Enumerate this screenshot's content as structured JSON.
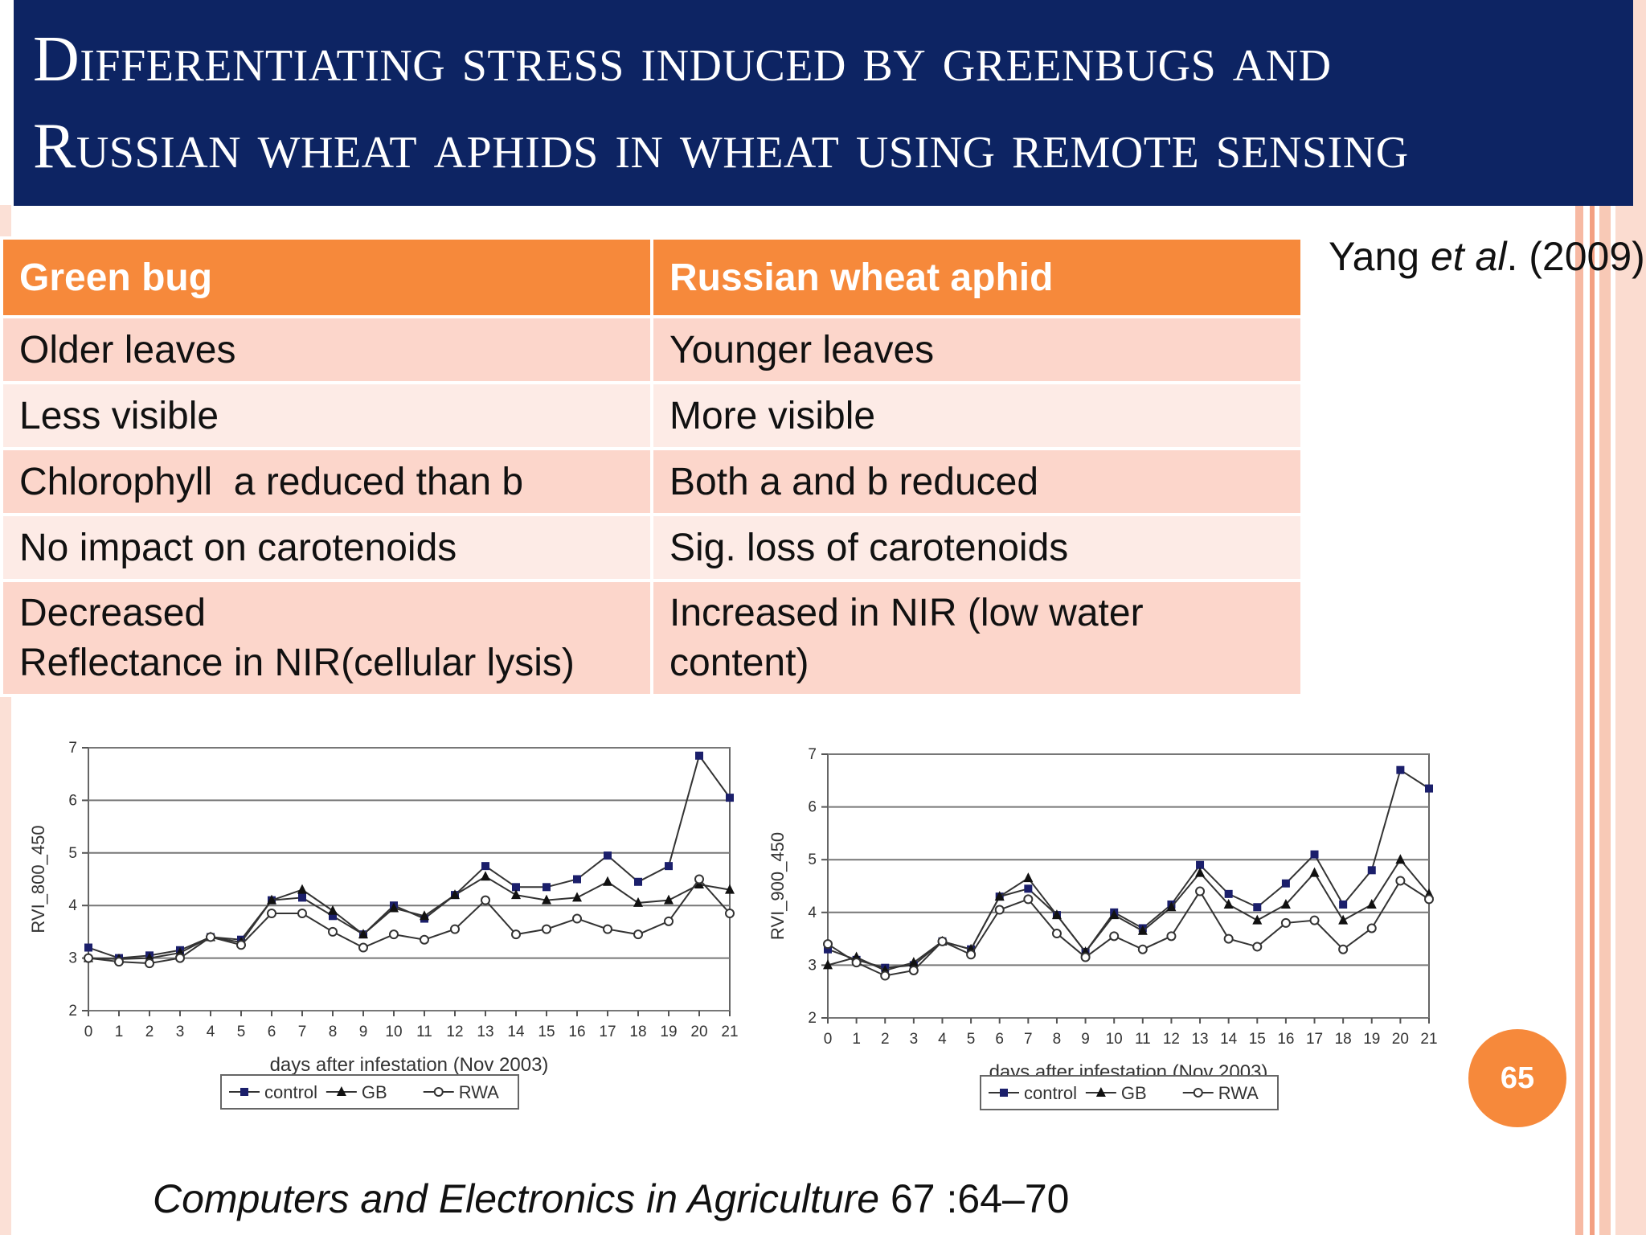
{
  "title": {
    "line1": "Differentiating stress induced by greenbugs and",
    "line2": "Russian wheat aphids in wheat using remote sensing"
  },
  "citation": {
    "author": "Yang ",
    "etal": "et al",
    "year": ". (2009)"
  },
  "table": {
    "headers": [
      "Green bug",
      "Russian wheat aphid"
    ],
    "rows": [
      [
        "Older leaves",
        "Younger leaves"
      ],
      [
        "Less visible",
        "More visible"
      ],
      [
        "Chlorophyll  a reduced than b",
        "Both a and b reduced"
      ],
      [
        "No impact on carotenoids",
        "Sig. loss of carotenoids"
      ],
      [
        "Decreased",
        "Increased in NIR (low water"
      ],
      [
        "Reflectance in NIR(cellular lysis)",
        "content)"
      ]
    ]
  },
  "page_number": "65",
  "footer": {
    "journal": "Computers and Electronics in Agriculture",
    "ref": " 67 :64–70"
  },
  "colors": {
    "header_bg": "#0d2463",
    "accent": "#f6893b",
    "row_odd": "#fcd6cb",
    "row_even": "#fdebe6"
  },
  "chart_data": [
    {
      "type": "line",
      "xlabel": "days after infestation (Nov 2003)",
      "ylabel": "RVI_800_450",
      "x": [
        0,
        1,
        2,
        3,
        4,
        5,
        6,
        7,
        8,
        9,
        10,
        11,
        12,
        13,
        14,
        15,
        16,
        17,
        18,
        19,
        20,
        21
      ],
      "ylim": [
        2,
        7
      ],
      "yticks": [
        2,
        3,
        4,
        5,
        6,
        7
      ],
      "grid": "horizontal",
      "legend": "bottom",
      "series": [
        {
          "name": "control",
          "marker": "square",
          "values": [
            3.2,
            3.0,
            3.05,
            3.15,
            3.4,
            3.35,
            4.1,
            4.15,
            3.8,
            3.45,
            4.0,
            3.75,
            4.2,
            4.75,
            4.35,
            4.35,
            4.5,
            4.95,
            4.45,
            4.75,
            6.85,
            6.05
          ]
        },
        {
          "name": "GB",
          "marker": "triangle",
          "values": [
            3.0,
            2.98,
            3.0,
            3.1,
            3.4,
            3.3,
            4.1,
            4.3,
            3.9,
            3.45,
            3.95,
            3.8,
            4.2,
            4.55,
            4.2,
            4.1,
            4.15,
            4.45,
            4.05,
            4.1,
            4.4,
            4.3
          ]
        },
        {
          "name": "RWA",
          "marker": "circle",
          "values": [
            3.0,
            2.93,
            2.9,
            3.0,
            3.4,
            3.25,
            3.85,
            3.85,
            3.5,
            3.2,
            3.45,
            3.35,
            3.55,
            4.1,
            3.45,
            3.55,
            3.75,
            3.55,
            3.45,
            3.7,
            4.5,
            3.85
          ]
        }
      ]
    },
    {
      "type": "line",
      "xlabel": "days after infestation (Nov 2003)",
      "ylabel": "RVI_900_450",
      "x": [
        0,
        1,
        2,
        3,
        4,
        5,
        6,
        7,
        8,
        9,
        10,
        11,
        12,
        13,
        14,
        15,
        16,
        17,
        18,
        19,
        20,
        21
      ],
      "ylim": [
        2,
        7
      ],
      "yticks": [
        2,
        3,
        4,
        5,
        6,
        7
      ],
      "grid": "horizontal",
      "legend": "bottom",
      "series": [
        {
          "name": "control",
          "marker": "square",
          "values": [
            3.3,
            3.1,
            2.95,
            3.0,
            3.45,
            3.3,
            4.3,
            4.45,
            3.95,
            3.25,
            4.0,
            3.7,
            4.15,
            4.9,
            4.35,
            4.1,
            4.55,
            5.1,
            4.15,
            4.8,
            6.7,
            6.35
          ]
        },
        {
          "name": "GB",
          "marker": "triangle",
          "values": [
            3.0,
            3.15,
            2.9,
            3.05,
            3.45,
            3.3,
            4.3,
            4.65,
            3.95,
            3.25,
            3.95,
            3.65,
            4.1,
            4.75,
            4.15,
            3.85,
            4.15,
            4.75,
            3.85,
            4.15,
            5.0,
            4.35
          ]
        },
        {
          "name": "RWA",
          "marker": "circle",
          "values": [
            3.4,
            3.05,
            2.8,
            2.9,
            3.45,
            3.2,
            4.05,
            4.25,
            3.6,
            3.15,
            3.55,
            3.3,
            3.55,
            4.4,
            3.5,
            3.35,
            3.8,
            3.85,
            3.3,
            3.7,
            4.6,
            4.25
          ]
        }
      ]
    }
  ]
}
